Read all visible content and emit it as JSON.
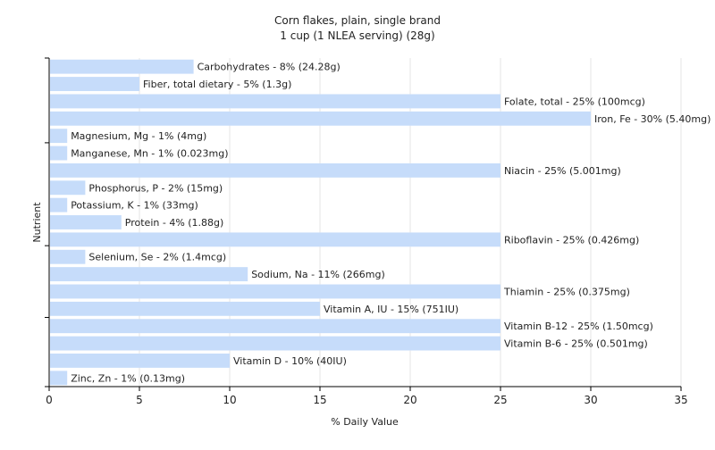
{
  "chart_data": {
    "type": "bar",
    "orientation": "horizontal",
    "title": "Corn flakes, plain, single brand",
    "subtitle": "1 cup (1 NLEA serving) (28g)",
    "xlabel": "% Daily Value",
    "ylabel": "Nutrient",
    "xlim": [
      0,
      35
    ],
    "xticks": [
      0,
      5,
      10,
      15,
      20,
      25,
      30,
      35
    ],
    "grid": true,
    "bar_color": "#c6dcfa",
    "categories": [
      "Carbohydrates",
      "Fiber, total dietary",
      "Folate, total",
      "Iron, Fe",
      "Magnesium, Mg",
      "Manganese, Mn",
      "Niacin",
      "Phosphorus, P",
      "Potassium, K",
      "Protein",
      "Riboflavin",
      "Selenium, Se",
      "Sodium, Na",
      "Thiamin",
      "Vitamin A, IU",
      "Vitamin B-12",
      "Vitamin B-6",
      "Vitamin D",
      "Zinc, Zn"
    ],
    "values": [
      8,
      5,
      25,
      30,
      1,
      1,
      25,
      2,
      1,
      4,
      25,
      2,
      11,
      25,
      15,
      25,
      25,
      10,
      1
    ],
    "labels": [
      "Carbohydrates - 8% (24.28g)",
      "Fiber, total dietary - 5% (1.3g)",
      "Folate, total - 25% (100mcg)",
      "Iron, Fe - 30% (5.40mg)",
      "Magnesium, Mg - 1% (4mg)",
      "Manganese, Mn - 1% (0.023mg)",
      "Niacin - 25% (5.001mg)",
      "Phosphorus, P - 2% (15mg)",
      "Potassium, K - 1% (33mg)",
      "Protein - 4% (1.88g)",
      "Riboflavin - 25% (0.426mg)",
      "Selenium, Se - 2% (1.4mcg)",
      "Sodium, Na - 11% (266mg)",
      "Thiamin - 25% (0.375mg)",
      "Vitamin A, IU - 15% (751IU)",
      "Vitamin B-12 - 25% (1.50mcg)",
      "Vitamin B-6 - 25% (0.501mg)",
      "Vitamin D - 10% (40IU)",
      "Zinc, Zn - 1% (0.13mg)"
    ]
  }
}
